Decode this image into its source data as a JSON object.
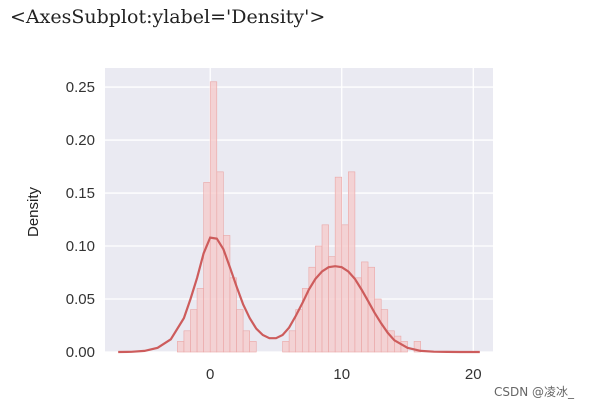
{
  "output": {
    "repr": "<AxesSubplot:ylabel='Density'>"
  },
  "watermark": "CSDN @凌冰_",
  "chart_data": {
    "type": "histogram+kde",
    "ylabel": "Density",
    "xlim": [
      -8,
      21.5
    ],
    "ylim": [
      0,
      0.268
    ],
    "x_ticks": [
      0,
      10,
      20
    ],
    "y_ticks": [
      0.0,
      0.05,
      0.1,
      0.15,
      0.2,
      0.25
    ],
    "y_tick_labels": [
      "0.00",
      "0.05",
      "0.10",
      "0.15",
      "0.20",
      "0.25"
    ],
    "grid": true,
    "colors": {
      "background": "#EAEAF2",
      "grid": "#FFFFFF",
      "bar_fill": "#F5C9C9",
      "bar_edge": "#EAA6A6",
      "kde": "#CD5C5C"
    },
    "histogram": {
      "bin_width": 0.5,
      "bins": [
        [
          -2.25,
          0.01
        ],
        [
          -1.75,
          0.02
        ],
        [
          -1.25,
          0.04
        ],
        [
          -0.75,
          0.06
        ],
        [
          -0.25,
          0.16
        ],
        [
          0.25,
          0.255
        ],
        [
          0.75,
          0.17
        ],
        [
          1.25,
          0.11
        ],
        [
          1.75,
          0.07
        ],
        [
          2.25,
          0.04
        ],
        [
          2.75,
          0.02
        ],
        [
          3.25,
          0.01
        ],
        [
          5.75,
          0.01
        ],
        [
          6.25,
          0.02
        ],
        [
          6.75,
          0.04
        ],
        [
          7.25,
          0.06
        ],
        [
          7.75,
          0.08
        ],
        [
          8.25,
          0.1
        ],
        [
          8.75,
          0.12
        ],
        [
          9.25,
          0.09
        ],
        [
          9.75,
          0.165
        ],
        [
          10.25,
          0.12
        ],
        [
          10.75,
          0.17
        ],
        [
          11.25,
          0.07
        ],
        [
          11.75,
          0.085
        ],
        [
          12.25,
          0.08
        ],
        [
          12.75,
          0.05
        ],
        [
          13.25,
          0.04
        ],
        [
          13.75,
          0.02
        ],
        [
          14.25,
          0.015
        ],
        [
          14.75,
          0.01
        ],
        [
          15.75,
          0.01
        ]
      ]
    },
    "kde": {
      "x": [
        -7,
        -6,
        -5,
        -4,
        -3,
        -2,
        -1.5,
        -1,
        -0.5,
        0,
        0.5,
        1,
        1.5,
        2,
        2.5,
        3,
        3.5,
        4,
        4.5,
        5,
        5.5,
        6,
        6.5,
        7,
        7.5,
        8,
        8.5,
        9,
        9.5,
        10,
        10.5,
        11,
        11.5,
        12,
        12.5,
        13,
        13.5,
        14,
        15,
        16,
        17,
        18,
        19,
        20.5
      ],
      "y": [
        0.0,
        0.0002,
        0.001,
        0.004,
        0.012,
        0.032,
        0.05,
        0.07,
        0.093,
        0.108,
        0.107,
        0.097,
        0.08,
        0.062,
        0.045,
        0.032,
        0.022,
        0.016,
        0.013,
        0.013,
        0.016,
        0.023,
        0.034,
        0.046,
        0.059,
        0.069,
        0.076,
        0.08,
        0.081,
        0.08,
        0.076,
        0.069,
        0.059,
        0.048,
        0.037,
        0.027,
        0.018,
        0.011,
        0.004,
        0.001,
        0.0003,
        0.0001,
        0.0,
        0.0
      ]
    }
  }
}
